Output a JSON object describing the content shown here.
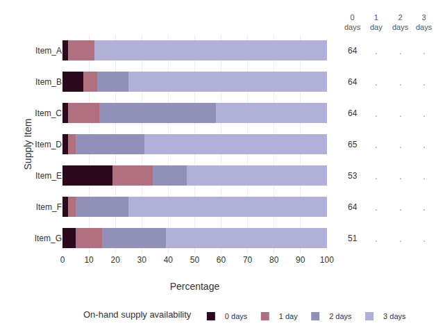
{
  "chart_data": {
    "type": "bar",
    "orientation": "horizontal",
    "stacked": true,
    "categories": [
      "Item_A",
      "Item_B",
      "Item_C",
      "Item_D",
      "Item_E",
      "Item_F",
      "Item_G"
    ],
    "series": [
      {
        "name": "0 days",
        "color": "#2b0a1e",
        "values": [
          2,
          8,
          2,
          2,
          19,
          2,
          5
        ]
      },
      {
        "name": "1 day",
        "color": "#b07080",
        "values": [
          10,
          5,
          12,
          3,
          15,
          3,
          10
        ]
      },
      {
        "name": "2 days",
        "color": "#9090b8",
        "values": [
          0,
          12,
          44,
          26,
          13,
          20,
          24
        ]
      },
      {
        "name": "3 days",
        "color": "#b0b0d8",
        "values": [
          88,
          75,
          42,
          69,
          53,
          75,
          61
        ]
      }
    ],
    "xlabel": "Percentage",
    "ylabel": "Supply Item",
    "xlim": [
      0,
      100
    ],
    "xticks": [
      0,
      10,
      20,
      30,
      40,
      50,
      60,
      70,
      80,
      90,
      100
    ],
    "grid": true,
    "legend": "bottom",
    "legend_title": "On-hand supply availability",
    "side_table": {
      "columns": [
        "0\ndays",
        "1\nday",
        "2\ndays",
        "3\ndays"
      ],
      "values": [
        64,
        64,
        64,
        65,
        53,
        64,
        51
      ],
      "placeholder": "."
    }
  }
}
